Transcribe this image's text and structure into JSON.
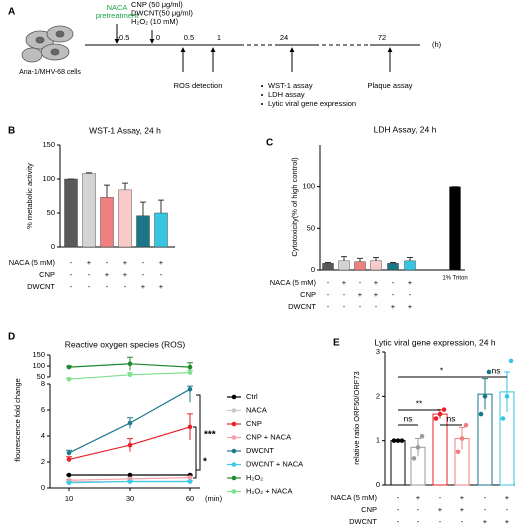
{
  "timeline": {
    "label": "A",
    "cells_label": "Ana-1/MHV-68 cells",
    "ticks": [
      "-0.5",
      "0",
      "0.5",
      "1",
      "24",
      "72"
    ],
    "unit": "(h)",
    "pretreatment": [
      "NACA",
      "pretreatment"
    ],
    "treatment": [
      "CNP (50 μg/ml)",
      "DWCNT(50 μg/ml)",
      "H₂O₂ (10 mM)"
    ],
    "ros": "ROS detection",
    "assays": [
      "WST-1 assay",
      "LDH assay",
      "Lytic viral gene expression"
    ],
    "plaque": "Plaque assay"
  },
  "chart_data": [
    {
      "type": "bar",
      "panel": "B",
      "title": "WST-1 Assay, 24 h",
      "ylabel": "% metabolic activity",
      "values": [
        100,
        108,
        73,
        84,
        46,
        50
      ],
      "errors": [
        0,
        1,
        18,
        10,
        20,
        19
      ],
      "colors": [
        "#595959",
        "#d4d4d4",
        "#f07f7f",
        "#f9caca",
        "#1a7688",
        "#36c6e2"
      ],
      "ylim": [
        0,
        150
      ],
      "yticks": [
        0,
        50,
        100,
        150
      ],
      "conditions": [
        {
          "name": "NACA (5 mM)",
          "signs": [
            "-",
            "+",
            "-",
            "+",
            "-",
            "+"
          ]
        },
        {
          "name": "CNP",
          "signs": [
            "-",
            "-",
            "+",
            "+",
            "-",
            "-"
          ]
        },
        {
          "name": "DWCNT",
          "signs": [
            "-",
            "-",
            "-",
            "-",
            "+",
            "+"
          ]
        }
      ]
    },
    {
      "type": "bar",
      "panel": "C",
      "title": "LDH Assay, 24 h",
      "ylabel": "Cytotoxicity(% of high control)",
      "categories": [
        null,
        null,
        null,
        null,
        null,
        null,
        "1% Triton"
      ],
      "values": [
        8,
        11,
        10,
        11,
        8,
        11,
        100
      ],
      "errors": [
        1,
        5,
        4,
        4,
        1,
        4,
        0
      ],
      "colors": [
        "#595959",
        "#d4d4d4",
        "#f07f7f",
        "#f9caca",
        "#1a7688",
        "#36c6e2",
        "#000000"
      ],
      "ylim": [
        0,
        150
      ],
      "yticks": [
        0,
        50,
        100
      ],
      "conditions": [
        {
          "name": "NACA (5 mM)",
          "signs": [
            "-",
            "+",
            "-",
            "+",
            "-",
            "+",
            null
          ]
        },
        {
          "name": "CNP",
          "signs": [
            "-",
            "-",
            "+",
            "+",
            "-",
            "-",
            null
          ]
        },
        {
          "name": "DWCNT",
          "signs": [
            "-",
            "-",
            "-",
            "-",
            "+",
            "+",
            null
          ]
        }
      ]
    },
    {
      "type": "line",
      "panel": "D",
      "title": "Reactive oxygen species (ROS)",
      "ylabel": "flourescence fold change",
      "xlabel": "(min)",
      "categories": [
        "10",
        "30",
        "60"
      ],
      "ylim": [
        0,
        8
      ],
      "yticks": [
        0,
        2,
        4,
        6,
        8
      ],
      "ylim_upper": [
        50,
        150
      ],
      "yticks_upper": [
        50,
        100,
        150
      ],
      "series": [
        {
          "name": "Ctrl",
          "color": "#000000",
          "values": [
            1,
            1,
            1
          ],
          "errors": [
            0,
            0,
            0
          ]
        },
        {
          "name": "NACA",
          "color": "#c8c8c8",
          "values": [
            0.5,
            0.5,
            0.5
          ],
          "errors": [
            0.05,
            0.05,
            0.05
          ]
        },
        {
          "name": "CNP",
          "color": "#e8202a",
          "values": [
            2.2,
            3.3,
            4.7
          ],
          "errors": [
            0.2,
            0.5,
            1.0
          ]
        },
        {
          "name": "CNP + NACA",
          "color": "#f4a0a8",
          "values": [
            0.6,
            0.7,
            0.8
          ],
          "errors": [
            0.05,
            0.1,
            0.1
          ]
        },
        {
          "name": "DWCNT",
          "color": "#1f7a8c",
          "values": [
            2.7,
            5.0,
            7.6
          ],
          "errors": [
            0.2,
            0.4,
            1.0
          ]
        },
        {
          "name": "DWCNT + NACA",
          "color": "#3cc8e6",
          "values": [
            0.4,
            0.5,
            0.5
          ],
          "errors": [
            0.05,
            0.05,
            0.05
          ]
        },
        {
          "name": "H₂O₂",
          "color": "#1e8a2e",
          "values": [
            95,
            110,
            95
          ],
          "errors": [
            5,
            30,
            20
          ]
        },
        {
          "name": "H₂O₂ + NACA",
          "color": "#7ee08e",
          "values": [
            40,
            60,
            70
          ],
          "errors": [
            5,
            10,
            10
          ]
        }
      ],
      "annotations": [
        "***",
        "*"
      ]
    },
    {
      "type": "dotbar",
      "panel": "E",
      "title": "Lytic viral gene expression, 24 h",
      "ylabel": "relative ratio ORF50/ORF73",
      "values": [
        1.0,
        0.85,
        1.6,
        1.05,
        2.05,
        2.1
      ],
      "errors": [
        0,
        0.2,
        0.1,
        0.25,
        0.35,
        0.45
      ],
      "points": [
        [
          1,
          1,
          1
        ],
        [
          0.6,
          0.85,
          1.1
        ],
        [
          1.5,
          1.6,
          1.7
        ],
        [
          0.75,
          1.05,
          1.35
        ],
        [
          1.6,
          2.0,
          2.55
        ],
        [
          1.5,
          2.0,
          2.8
        ]
      ],
      "colors": [
        "#000000",
        "#9a9a9a",
        "#e8202a",
        "#f07f7f",
        "#1a7688",
        "#36c6e2"
      ],
      "ylim": [
        0,
        3
      ],
      "yticks": [
        0,
        1,
        2,
        3
      ],
      "significance": [
        "*",
        "**",
        "ns",
        "ns",
        "ns"
      ],
      "conditions": [
        {
          "name": "NACA (5 mM)",
          "signs": [
            "-",
            "+",
            "-",
            "+",
            "-",
            "+"
          ]
        },
        {
          "name": "CNP",
          "signs": [
            "-",
            "-",
            "+",
            "+",
            "-",
            "-"
          ]
        },
        {
          "name": "DWCNT",
          "signs": [
            "-",
            "-",
            "-",
            "-",
            "+",
            "+"
          ]
        }
      ]
    }
  ]
}
